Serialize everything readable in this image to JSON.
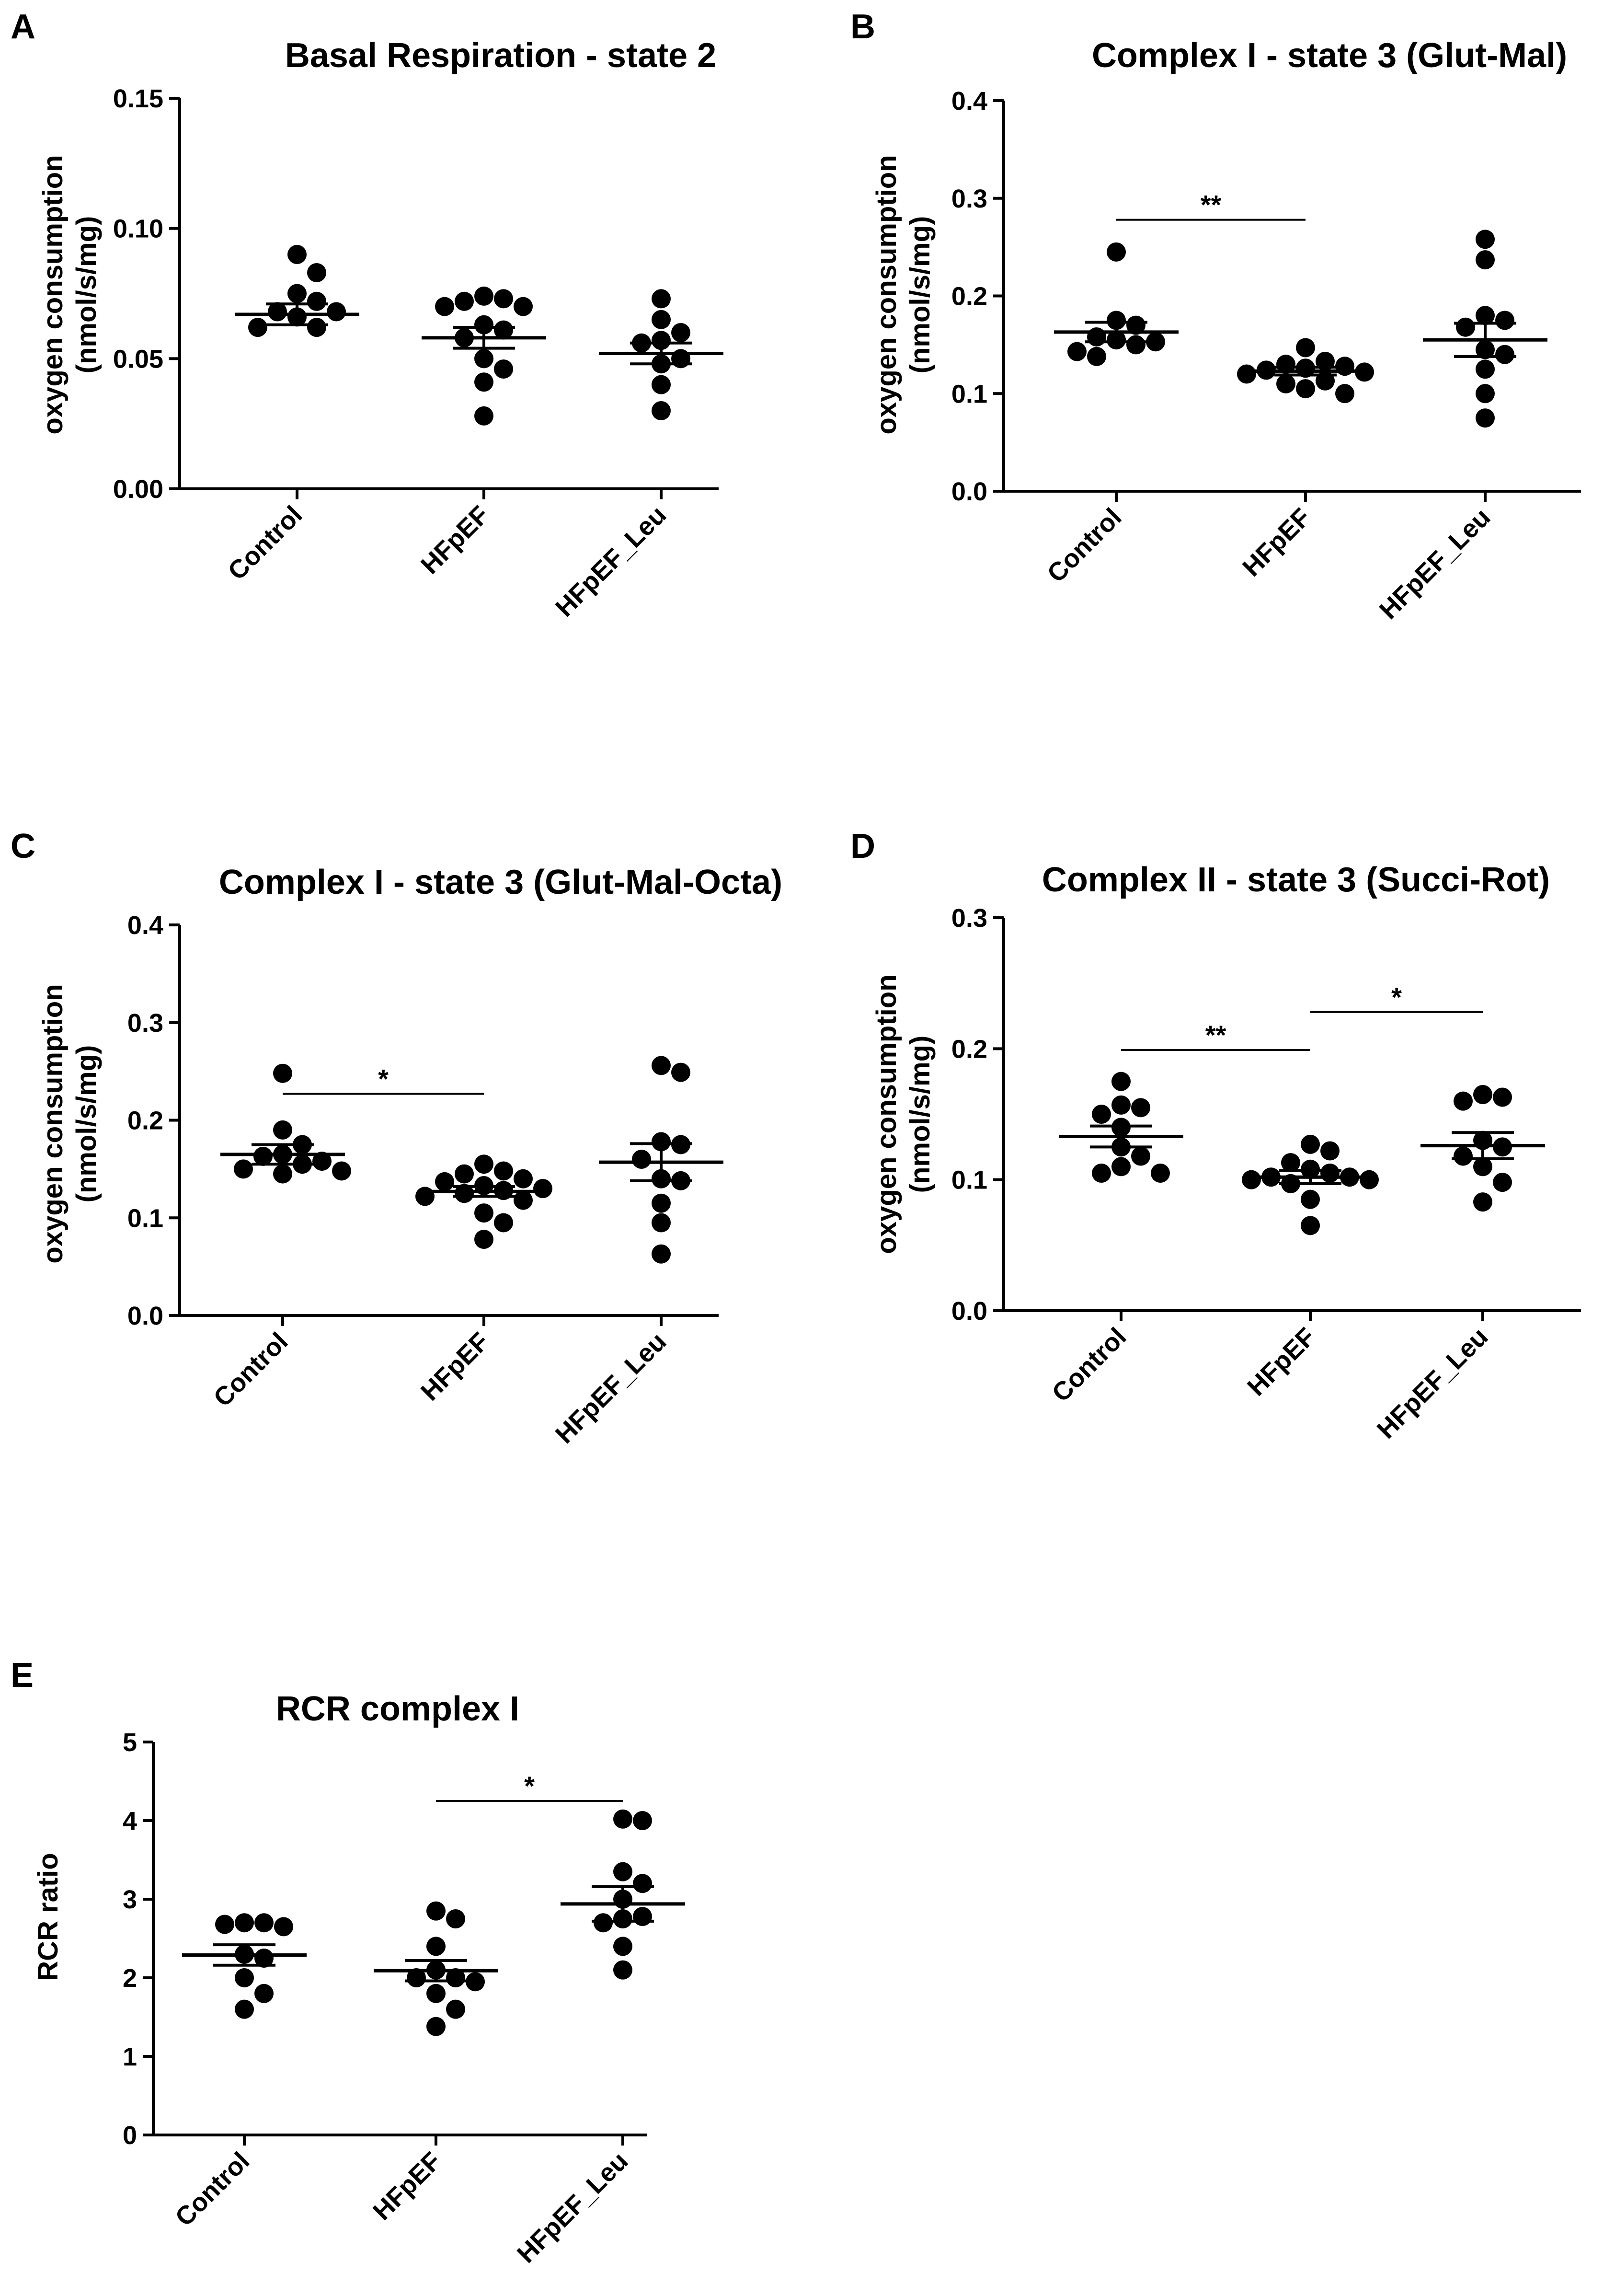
{
  "figure": {
    "panels": [
      "A",
      "B",
      "C",
      "D",
      "E"
    ]
  },
  "chart_data": [
    {
      "panel": "A",
      "type": "scatter",
      "title": "Basal Respiration - state 2",
      "ylabel": [
        "oxygen consumption",
        "(nmol/s/mg)"
      ],
      "xlabel": "",
      "ylim": [
        0,
        0.15
      ],
      "yticks": [
        0,
        0.05,
        0.1,
        0.15
      ],
      "ytick_labels": [
        "0.00",
        "0.05",
        "0.10",
        "0.15"
      ],
      "categories": [
        "Control",
        "HFpEF",
        "HFpEF_Leu"
      ],
      "series": [
        {
          "group": "Control",
          "points": [
            0.09,
            0.083,
            0.075,
            0.072,
            0.068,
            0.068,
            0.066,
            0.062,
            0.062
          ],
          "mean": 0.067,
          "sem": 0.004
        },
        {
          "group": "HFpEF",
          "points": [
            0.074,
            0.073,
            0.072,
            0.07,
            0.07,
            0.063,
            0.061,
            0.058,
            0.05,
            0.046,
            0.041,
            0.028
          ],
          "mean": 0.058,
          "sem": 0.004
        },
        {
          "group": "HFpEF_Leu",
          "points": [
            0.073,
            0.065,
            0.06,
            0.057,
            0.056,
            0.05,
            0.048,
            0.04,
            0.03
          ],
          "mean": 0.052,
          "sem": 0.004
        }
      ],
      "significance": []
    },
    {
      "panel": "B",
      "type": "scatter",
      "title": "Complex I - state 3 (Glut-Mal)",
      "ylabel": [
        "oxygen consumption",
        "(nmol/s/mg)"
      ],
      "xlabel": "",
      "ylim": [
        0,
        0.4
      ],
      "yticks": [
        0,
        0.1,
        0.2,
        0.3,
        0.4
      ],
      "ytick_labels": [
        "0.0",
        "0.1",
        "0.2",
        "0.3",
        "0.4"
      ],
      "categories": [
        "Control",
        "HFpEF",
        "HFpEF_Leu"
      ],
      "series": [
        {
          "group": "Control",
          "points": [
            0.245,
            0.175,
            0.17,
            0.158,
            0.155,
            0.153,
            0.15,
            0.143,
            0.138
          ],
          "mean": 0.163,
          "sem": 0.01
        },
        {
          "group": "HFpEF",
          "points": [
            0.147,
            0.133,
            0.13,
            0.128,
            0.126,
            0.124,
            0.122,
            0.12,
            0.113,
            0.11,
            0.105,
            0.1
          ],
          "mean": 0.123,
          "sem": 0.004
        },
        {
          "group": "HFpEF_Leu",
          "points": [
            0.258,
            0.237,
            0.18,
            0.175,
            0.168,
            0.145,
            0.14,
            0.125,
            0.1,
            0.075
          ],
          "mean": 0.155,
          "sem": 0.017
        }
      ],
      "significance": [
        {
          "from": 0,
          "to": 1,
          "y": 0.278,
          "label": "**"
        }
      ]
    },
    {
      "panel": "C",
      "type": "scatter",
      "title": "Complex I - state 3 (Glut-Mal-Octa)",
      "ylabel": [
        "oxygen consumption",
        "(nmol/s/mg)"
      ],
      "xlabel": "",
      "ylim": [
        0,
        0.4
      ],
      "yticks": [
        0,
        0.1,
        0.2,
        0.3,
        0.4
      ],
      "ytick_labels": [
        "0.0",
        "0.1",
        "0.2",
        "0.3",
        "0.4"
      ],
      "categories": [
        "Control",
        "HFpEF",
        "HFpEF_Leu"
      ],
      "series": [
        {
          "group": "Control",
          "points": [
            0.248,
            0.19,
            0.175,
            0.165,
            0.163,
            0.158,
            0.155,
            0.15,
            0.148,
            0.145
          ],
          "mean": 0.165,
          "sem": 0.01
        },
        {
          "group": "HFpEF",
          "points": [
            0.155,
            0.148,
            0.145,
            0.14,
            0.137,
            0.133,
            0.13,
            0.128,
            0.125,
            0.122,
            0.118,
            0.105,
            0.095,
            0.078
          ],
          "mean": 0.127,
          "sem": 0.005
        },
        {
          "group": "HFpEF_Leu",
          "points": [
            0.256,
            0.249,
            0.178,
            0.175,
            0.16,
            0.14,
            0.138,
            0.115,
            0.095,
            0.063
          ],
          "mean": 0.157,
          "sem": 0.019
        }
      ],
      "significance": [
        {
          "from": 0,
          "to": 1,
          "y": 0.227,
          "label": "*"
        }
      ]
    },
    {
      "panel": "D",
      "type": "scatter",
      "title": "Complex II - state 3 (Succi-Rot)",
      "ylabel": [
        "oxygen consumption",
        "(nmol/s/mg)"
      ],
      "xlabel": "",
      "ylim": [
        0,
        0.3
      ],
      "yticks": [
        0,
        0.1,
        0.2,
        0.3
      ],
      "ytick_labels": [
        "0.0",
        "0.1",
        "0.2",
        "0.3"
      ],
      "categories": [
        "Control",
        "HFpEF",
        "HFpEF_Leu"
      ],
      "series": [
        {
          "group": "Control",
          "points": [
            0.175,
            0.157,
            0.155,
            0.15,
            0.14,
            0.125,
            0.118,
            0.11,
            0.105,
            0.105
          ],
          "mean": 0.133,
          "sem": 0.008
        },
        {
          "group": "HFpEF",
          "points": [
            0.127,
            0.122,
            0.113,
            0.108,
            0.105,
            0.102,
            0.102,
            0.1,
            0.1,
            0.097,
            0.085,
            0.065
          ],
          "mean": 0.102,
          "sem": 0.005
        },
        {
          "group": "HFpEF_Leu",
          "points": [
            0.165,
            0.163,
            0.16,
            0.13,
            0.125,
            0.118,
            0.11,
            0.098,
            0.083
          ],
          "mean": 0.126,
          "sem": 0.01
        }
      ],
      "significance": [
        {
          "from": 0,
          "to": 1,
          "y": 0.199,
          "label": "**"
        },
        {
          "from": 1,
          "to": 2,
          "y": 0.228,
          "label": "*"
        }
      ]
    },
    {
      "panel": "E",
      "type": "scatter",
      "title": "RCR complex I",
      "ylabel": [
        "RCR ratio"
      ],
      "xlabel": "",
      "ylim": [
        0,
        5
      ],
      "yticks": [
        0,
        1,
        2,
        3,
        4,
        5
      ],
      "ytick_labels": [
        "0",
        "1",
        "2",
        "3",
        "4",
        "5"
      ],
      "categories": [
        "Control",
        "HFpEF",
        "HFpEF_Leu"
      ],
      "series": [
        {
          "group": "Control",
          "points": [
            2.7,
            2.7,
            2.68,
            2.65,
            2.3,
            2.25,
            2.0,
            1.8,
            1.6
          ],
          "mean": 2.29,
          "sem": 0.13
        },
        {
          "group": "HFpEF",
          "points": [
            2.85,
            2.75,
            2.4,
            2.1,
            2.0,
            2.0,
            1.95,
            1.8,
            1.6,
            1.38
          ],
          "mean": 2.09,
          "sem": 0.13
        },
        {
          "group": "HFpEF_Leu",
          "points": [
            4.02,
            4.0,
            3.35,
            3.2,
            3.0,
            2.78,
            2.75,
            2.7,
            2.4,
            2.1
          ],
          "mean": 2.94,
          "sem": 0.22
        }
      ],
      "significance": [
        {
          "from": 1,
          "to": 2,
          "y": 4.25,
          "label": "*"
        }
      ]
    }
  ]
}
